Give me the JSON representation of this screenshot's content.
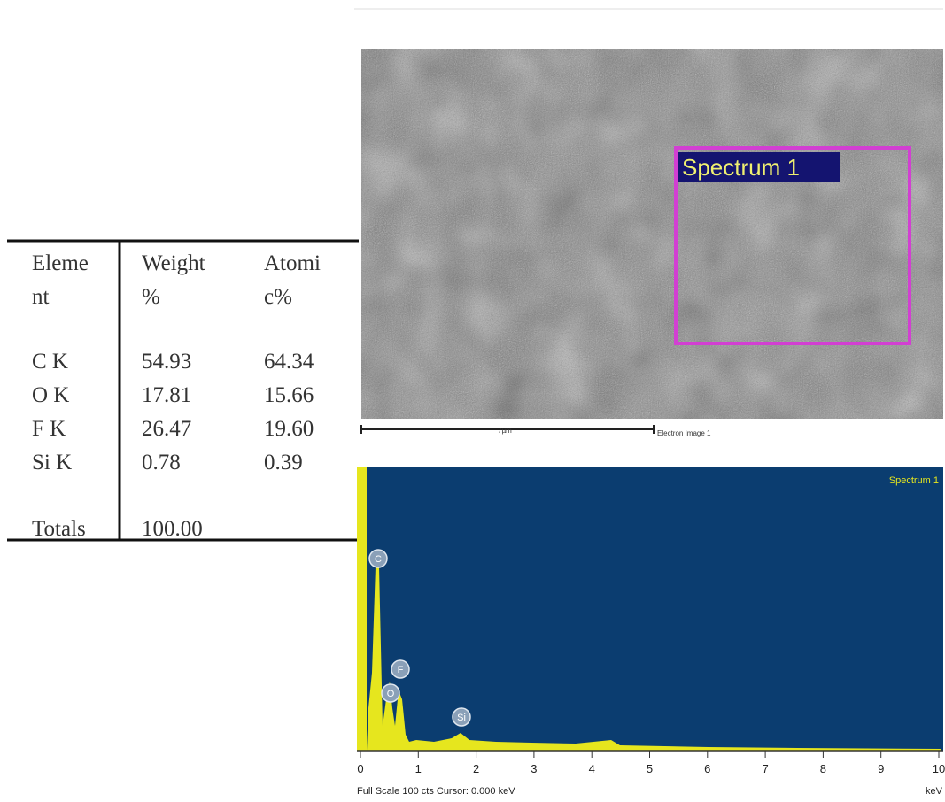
{
  "table": {
    "header": [
      [
        "Eleme",
        "nt"
      ],
      [
        "Weight",
        "%"
      ],
      [
        "Atomi",
        "c%"
      ]
    ],
    "rows": [
      [
        "C K",
        "54.93",
        "64.34"
      ],
      [
        "O K",
        "17.81",
        "15.66"
      ],
      [
        "F K",
        "26.47",
        "19.60"
      ],
      [
        "Si K",
        "0.78",
        "0.39"
      ]
    ],
    "totals": [
      "Totals",
      "100.00"
    ]
  },
  "image": {
    "region_label": "Spectrum 1",
    "scale_label": "7µm",
    "caption": "Electron Image 1"
  },
  "spectrum": {
    "title": "Spectrum 1",
    "peaks": [
      "C",
      "O",
      "F",
      "Si"
    ],
    "xlim": [
      0,
      10
    ],
    "xticks": [
      0,
      1,
      2,
      3,
      4,
      5,
      6,
      7,
      8,
      9,
      10
    ],
    "x_unit": "keV",
    "footer": "Full Scale 100 cts  Cursor: 0.000 keV"
  }
}
